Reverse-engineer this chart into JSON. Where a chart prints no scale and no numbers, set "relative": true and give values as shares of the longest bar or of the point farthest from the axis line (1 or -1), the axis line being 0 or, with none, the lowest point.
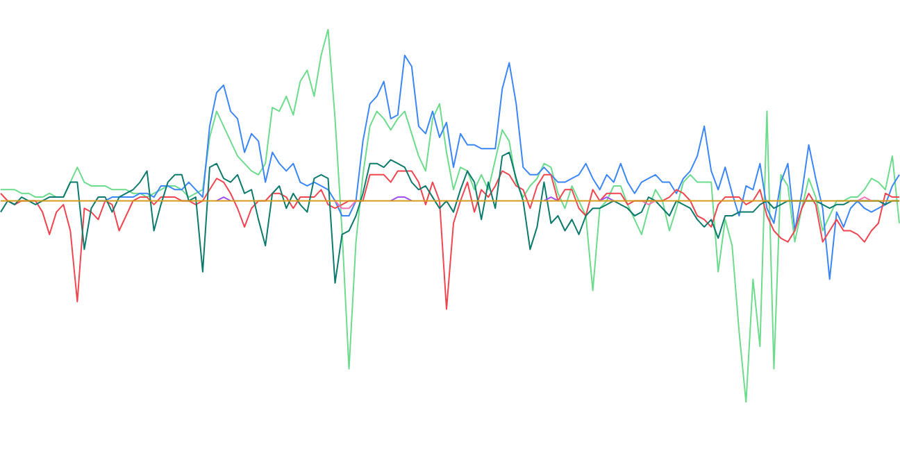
{
  "chart_data": {
    "type": "line",
    "relative": true,
    "categories": [
      null,
      null,
      null,
      null,
      null,
      null,
      null,
      null,
      null,
      null,
      null,
      null,
      null,
      null,
      null,
      null,
      null,
      null,
      null,
      null,
      null,
      null,
      null,
      null,
      null,
      null,
      null,
      null,
      null,
      null,
      null,
      null,
      null,
      null,
      null,
      null,
      null,
      null,
      null,
      null,
      null,
      null,
      null,
      null,
      null,
      null,
      null,
      null,
      null,
      null,
      null,
      null,
      null,
      null,
      null,
      null,
      null,
      null,
      null,
      null,
      null,
      null,
      null,
      null,
      null,
      null,
      null,
      null,
      null,
      null,
      null,
      null,
      null,
      null,
      null,
      null,
      null,
      null,
      null,
      null,
      null,
      null,
      null,
      null,
      null,
      null,
      null,
      null,
      null,
      null,
      null,
      null,
      null,
      null,
      null,
      null,
      null,
      null,
      null,
      null,
      null,
      null,
      null,
      null,
      null,
      null,
      null,
      null,
      null,
      null,
      null,
      null,
      null,
      null,
      null,
      null,
      null,
      null,
      null,
      null,
      null,
      null,
      null,
      null,
      null,
      null,
      null,
      null,
      null,
      null
    ],
    "series": [
      {
        "color": "#6cdc8c",
        "values": [
          0.57,
          0.57,
          0.57,
          0.56,
          0.56,
          0.55,
          0.55,
          0.56,
          0.55,
          0.55,
          0.59,
          0.63,
          0.59,
          0.58,
          0.58,
          0.58,
          0.57,
          0.57,
          0.57,
          0.56,
          0.56,
          0.55,
          0.56,
          0.57,
          0.58,
          0.58,
          0.57,
          0.55,
          0.56,
          0.57,
          0.71,
          0.78,
          0.74,
          0.7,
          0.66,
          0.64,
          0.62,
          0.61,
          0.64,
          0.79,
          0.78,
          0.82,
          0.77,
          0.86,
          0.89,
          0.82,
          0.93,
          1.0,
          0.76,
          0.46,
          0.09,
          0.43,
          0.61,
          0.74,
          0.78,
          0.76,
          0.73,
          0.76,
          0.78,
          0.72,
          0.66,
          0.62,
          0.76,
          0.8,
          0.67,
          0.57,
          0.63,
          0.62,
          0.57,
          0.61,
          0.57,
          0.65,
          0.73,
          0.7,
          0.59,
          0.55,
          0.58,
          0.6,
          0.64,
          0.63,
          0.56,
          0.52,
          0.58,
          0.54,
          0.5,
          0.3,
          0.52,
          0.54,
          0.58,
          0.58,
          0.53,
          0.49,
          0.45,
          0.52,
          0.57,
          0.54,
          0.46,
          0.52,
          0.59,
          0.61,
          0.59,
          0.59,
          0.59,
          0.35,
          0.49,
          0.42,
          0.19,
          0.0,
          0.33,
          0.15,
          0.78,
          0.09,
          0.61,
          0.58,
          0.43,
          0.52,
          0.6,
          0.55,
          0.46,
          0.5,
          0.54,
          0.54,
          0.55,
          0.55,
          0.57,
          0.6,
          0.59,
          0.57,
          0.66,
          0.48
        ]
      },
      {
        "color": "#3b86f6",
        "values": [
          null,
          null,
          null,
          null,
          null,
          null,
          null,
          null,
          null,
          null,
          null,
          null,
          null,
          null,
          0.54,
          0.54,
          0.55,
          0.55,
          0.55,
          0.55,
          0.56,
          0.56,
          0.55,
          0.58,
          0.58,
          0.57,
          0.57,
          0.59,
          0.57,
          0.55,
          0.74,
          0.83,
          0.85,
          0.78,
          0.76,
          0.67,
          0.72,
          0.7,
          0.59,
          0.67,
          0.64,
          0.62,
          0.64,
          0.59,
          0.58,
          0.59,
          0.58,
          0.57,
          0.54,
          0.5,
          0.5,
          0.54,
          0.7,
          0.8,
          0.82,
          0.86,
          0.76,
          0.77,
          0.93,
          0.9,
          0.74,
          0.72,
          0.78,
          0.71,
          0.75,
          0.63,
          0.72,
          0.69,
          0.69,
          0.68,
          0.68,
          0.68,
          0.84,
          0.91,
          0.8,
          0.63,
          0.61,
          0.61,
          0.63,
          0.61,
          0.59,
          0.59,
          0.6,
          0.61,
          0.64,
          0.6,
          0.57,
          0.61,
          0.59,
          0.64,
          0.59,
          0.56,
          0.59,
          0.6,
          0.61,
          0.59,
          0.59,
          0.56,
          0.6,
          0.62,
          0.66,
          0.74,
          0.62,
          0.57,
          0.63,
          0.56,
          0.5,
          0.58,
          0.57,
          0.64,
          0.52,
          0.48,
          0.59,
          0.64,
          0.46,
          0.56,
          0.69,
          0.6,
          0.52,
          0.33,
          0.51,
          0.47,
          0.52,
          0.54,
          0.52,
          0.51,
          0.52,
          0.53,
          0.58,
          0.61
        ]
      },
      {
        "color": "#f0454f",
        "values": [
          0.56,
          0.54,
          0.53,
          0.54,
          0.54,
          0.54,
          0.51,
          0.45,
          0.51,
          0.53,
          0.46,
          0.27,
          0.52,
          0.51,
          0.49,
          0.54,
          0.53,
          0.46,
          0.5,
          0.54,
          0.55,
          0.55,
          0.53,
          0.55,
          0.55,
          0.55,
          0.54,
          0.54,
          0.53,
          0.54,
          0.57,
          0.6,
          0.59,
          0.56,
          0.52,
          0.47,
          0.52,
          0.54,
          0.54,
          0.56,
          0.56,
          0.55,
          0.52,
          0.55,
          0.55,
          0.55,
          0.57,
          0.53,
          0.52,
          0.53,
          0.54,
          0.54,
          0.54,
          0.61,
          0.61,
          0.61,
          0.59,
          0.62,
          0.62,
          0.62,
          0.59,
          0.53,
          0.59,
          0.54,
          0.25,
          0.48,
          0.54,
          0.59,
          0.51,
          0.57,
          0.55,
          0.58,
          0.62,
          0.61,
          0.58,
          0.57,
          0.52,
          0.58,
          0.61,
          0.61,
          0.54,
          0.57,
          0.57,
          0.52,
          0.5,
          0.57,
          0.54,
          0.56,
          0.56,
          0.56,
          0.53,
          0.54,
          0.54,
          0.54,
          0.54,
          0.54,
          0.55,
          0.57,
          0.56,
          0.54,
          0.5,
          0.49,
          0.47,
          0.53,
          0.55,
          0.55,
          0.55,
          0.53,
          0.54,
          0.57,
          0.5,
          0.46,
          0.44,
          0.43,
          0.46,
          0.52,
          0.56,
          0.53,
          0.43,
          0.46,
          0.49,
          0.46,
          0.46,
          0.45,
          0.43,
          0.46,
          0.48,
          0.56,
          0.55,
          0.55
        ]
      },
      {
        "color": "#0b7a6c",
        "values": [
          0.51,
          0.54,
          0.53,
          0.55,
          0.54,
          0.53,
          0.54,
          0.55,
          0.55,
          0.55,
          0.59,
          0.59,
          0.41,
          0.52,
          0.55,
          0.55,
          0.51,
          0.55,
          0.56,
          0.57,
          0.59,
          0.62,
          0.46,
          0.53,
          0.59,
          0.61,
          0.61,
          0.54,
          0.55,
          0.35,
          0.63,
          0.64,
          0.6,
          0.59,
          0.61,
          0.56,
          0.57,
          0.49,
          0.42,
          0.56,
          0.58,
          0.52,
          0.56,
          0.53,
          0.51,
          0.6,
          0.61,
          0.6,
          0.32,
          0.45,
          0.46,
          0.5,
          0.56,
          0.64,
          0.64,
          0.63,
          0.65,
          0.64,
          0.63,
          0.59,
          0.57,
          0.58,
          0.55,
          0.52,
          0.54,
          0.51,
          0.57,
          0.62,
          0.59,
          0.49,
          0.59,
          0.52,
          0.66,
          0.67,
          0.6,
          0.54,
          0.41,
          0.47,
          0.59,
          0.48,
          0.5,
          0.46,
          0.49,
          0.45,
          0.5,
          0.52,
          0.52,
          0.53,
          0.54,
          0.53,
          0.52,
          0.5,
          0.51,
          0.55,
          0.54,
          0.52,
          0.5,
          0.54,
          0.53,
          0.52,
          0.49,
          0.47,
          0.49,
          0.44,
          0.5,
          0.5,
          0.51,
          0.51,
          0.51,
          0.53,
          0.54,
          0.52,
          0.53,
          0.54,
          0.54,
          0.54,
          0.54,
          0.54,
          0.53,
          0.52,
          0.53,
          0.53,
          0.54,
          0.54,
          0.54,
          0.54,
          0.54,
          0.53,
          0.54,
          0.54
        ]
      },
      {
        "color": "#a04cf7",
        "values": [
          null,
          null,
          null,
          null,
          null,
          null,
          null,
          null,
          null,
          null,
          null,
          null,
          null,
          null,
          null,
          null,
          null,
          null,
          null,
          null,
          null,
          null,
          null,
          null,
          null,
          null,
          null,
          null,
          null,
          null,
          null,
          0.54,
          0.55,
          0.54,
          null,
          null,
          null,
          null,
          null,
          null,
          null,
          null,
          null,
          null,
          null,
          null,
          null,
          null,
          null,
          null,
          null,
          null,
          null,
          null,
          null,
          null,
          0.54,
          0.55,
          0.55,
          0.54,
          null,
          null,
          null,
          null,
          null,
          null,
          null,
          null,
          null,
          null,
          null,
          null,
          null,
          null,
          null,
          null,
          null,
          null,
          0.54,
          0.55,
          0.54,
          null,
          null,
          null,
          null,
          null,
          0.54,
          0.55,
          0.54,
          null,
          null,
          null,
          null,
          null,
          null,
          null,
          null,
          null,
          null,
          null,
          null,
          null,
          null,
          null,
          null,
          null,
          null,
          null,
          null,
          null,
          null,
          null,
          null,
          null,
          null,
          null,
          null,
          null,
          null,
          null,
          null,
          null,
          null,
          null,
          null,
          null,
          null,
          null,
          null,
          null
        ]
      },
      {
        "color": "#f472b6",
        "values": [
          null,
          null,
          null,
          null,
          null,
          null,
          null,
          null,
          null,
          null,
          null,
          null,
          null,
          null,
          null,
          null,
          null,
          null,
          null,
          null,
          null,
          null,
          null,
          null,
          null,
          null,
          null,
          null,
          null,
          null,
          null,
          null,
          null,
          null,
          null,
          null,
          null,
          null,
          null,
          null,
          null,
          null,
          null,
          null,
          null,
          null,
          null,
          null,
          0.54,
          0.52,
          0.52,
          0.54,
          null,
          null,
          null,
          null,
          null,
          null,
          null,
          null,
          null,
          null,
          null,
          null,
          null,
          null,
          null,
          null,
          null,
          null,
          null,
          null,
          null,
          null,
          null,
          null,
          null,
          null,
          null,
          null,
          null,
          null,
          null,
          null,
          null,
          null,
          null,
          null,
          null,
          null,
          null,
          null,
          0.54,
          0.53,
          0.54,
          null,
          null,
          null,
          null,
          null,
          null,
          null,
          null,
          null,
          null,
          null,
          null,
          null,
          null,
          null,
          null,
          null,
          null,
          null,
          null,
          null,
          null,
          null,
          null,
          null,
          null,
          null,
          null,
          0.54,
          0.55,
          0.54,
          null,
          null,
          null,
          null
        ]
      },
      {
        "color": "#d39b1c",
        "values": [
          0.54,
          0.54,
          0.54,
          0.54,
          0.54,
          0.54,
          0.54,
          0.54,
          0.54,
          0.54,
          0.54,
          0.54,
          0.54,
          0.54,
          0.54,
          0.54,
          0.54,
          0.54,
          0.54,
          0.54,
          0.54,
          0.54,
          0.54,
          0.54,
          0.54,
          0.54,
          0.54,
          0.54,
          0.54,
          0.54,
          0.54,
          0.54,
          0.54,
          0.54,
          0.54,
          0.54,
          0.54,
          0.54,
          0.54,
          0.54,
          0.54,
          0.54,
          0.54,
          0.54,
          0.54,
          0.54,
          0.54,
          0.54,
          0.54,
          0.54,
          0.54,
          0.54,
          0.54,
          0.54,
          0.54,
          0.54,
          0.54,
          0.54,
          0.54,
          0.54,
          0.54,
          0.54,
          0.54,
          0.54,
          0.54,
          0.54,
          0.54,
          0.54,
          0.54,
          0.54,
          0.54,
          0.54,
          0.54,
          0.54,
          0.54,
          0.54,
          0.54,
          0.54,
          0.54,
          0.54,
          0.54,
          0.54,
          0.54,
          0.54,
          0.54,
          0.54,
          0.54,
          0.54,
          0.54,
          0.54,
          0.54,
          0.54,
          0.54,
          0.54,
          0.54,
          0.54,
          0.54,
          0.54,
          0.54,
          0.54,
          0.54,
          0.54,
          0.54,
          0.54,
          0.54,
          0.54,
          0.54,
          0.54,
          0.54,
          0.54,
          0.54,
          0.54,
          0.54,
          0.54,
          0.54,
          0.54,
          0.54,
          0.54,
          0.54,
          0.54,
          0.54,
          0.54,
          0.54,
          0.54,
          0.54,
          0.54,
          0.54,
          0.54,
          0.54,
          0.54
        ]
      }
    ]
  }
}
